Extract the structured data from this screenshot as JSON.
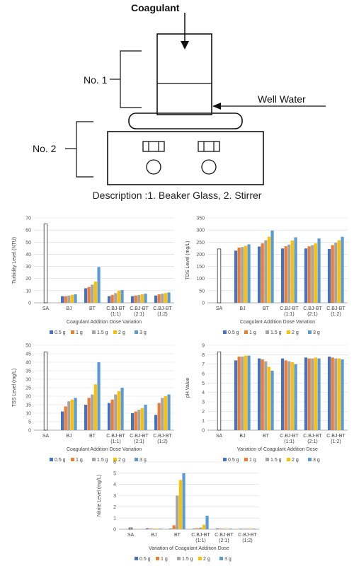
{
  "diagram": {
    "coagulant_label": "Coagulant",
    "well_water_label": "Well Water",
    "no1_label": "No. 1",
    "no2_label": "No. 2",
    "description": "Description :1. Beaker Glass, 2. Stirrer"
  },
  "colors": {
    "0.5 g": "#4472c4",
    "1 g": "#ed7d31",
    "1.5 g": "#a5a5a5",
    "2 g": "#ffc000",
    "3 g": "#5b9bd5",
    "SA": "#ffffff"
  },
  "chart_data": [
    {
      "id": "turbidity",
      "type": "bar",
      "ylabel": "Turbidity Level  (NTU)",
      "xlabel": "Coagulant Addition Dose Variation",
      "ylim": [
        0,
        70
      ],
      "yticks": [
        0,
        10,
        20,
        30,
        40,
        50,
        60,
        70
      ],
      "categories": [
        "SA",
        "BJ",
        "BT",
        "C.BJ-BT (1:1)",
        "C.BJ-BT (2:1)",
        "C.BJ-BT (1:2)"
      ],
      "sa_value": 65,
      "series": [
        {
          "name": "0.5 g",
          "values": [
            null,
            5.5,
            12,
            5.5,
            5.5,
            6
          ]
        },
        {
          "name": "1 g",
          "values": [
            null,
            5.5,
            13,
            6.5,
            6,
            7
          ]
        },
        {
          "name": "1.5 g",
          "values": [
            null,
            6,
            15,
            8,
            6.5,
            7.5
          ]
        },
        {
          "name": "2 g",
          "values": [
            null,
            6.5,
            17.5,
            10,
            7,
            8
          ]
        },
        {
          "name": "3 g",
          "values": [
            null,
            7,
            29.5,
            10.5,
            7.5,
            8.5
          ]
        }
      ],
      "legend": [
        "0.5 g",
        "1 g",
        "1.5 g",
        "2 g",
        "3 g"
      ]
    },
    {
      "id": "tds",
      "type": "bar",
      "ylabel": "TDS Level (mg/L)",
      "xlabel": "Coagulant Addition Dose Variation",
      "ylim": [
        0,
        350
      ],
      "yticks": [
        0,
        50,
        100,
        150,
        200,
        250,
        300,
        350
      ],
      "categories": [
        "SA",
        "BJ",
        "BT",
        "C.BJ-BT (1:1)",
        "C.BJ-BT (2:1)",
        "C.BJ-BT (1:2)"
      ],
      "sa_value": 222,
      "series": [
        {
          "name": "0.5 g",
          "values": [
            null,
            215,
            232,
            224,
            224,
            222
          ]
        },
        {
          "name": "1 g",
          "values": [
            null,
            228,
            245,
            233,
            233,
            238
          ]
        },
        {
          "name": "1.5 g",
          "values": [
            null,
            230,
            258,
            240,
            238,
            248
          ]
        },
        {
          "name": "2 g",
          "values": [
            null,
            235,
            272,
            257,
            245,
            258
          ]
        },
        {
          "name": "3 g",
          "values": [
            null,
            241,
            298,
            270,
            265,
            272
          ]
        }
      ],
      "legend": [
        "0.5 g",
        "1 g",
        "1.5 g",
        "2 g",
        "3 g"
      ]
    },
    {
      "id": "tss",
      "type": "bar",
      "ylabel": "TSS Level (mg/L)",
      "xlabel": "Coagulant Addition Dose Variation",
      "ylim": [
        0,
        50
      ],
      "yticks": [
        0,
        5,
        10,
        15,
        20,
        25,
        30,
        35,
        40,
        45,
        50
      ],
      "categories": [
        "SA",
        "BJ",
        "BT",
        "C.BJ-BT (1:1)",
        "C.BJ-BT (2:1)",
        "C.BJ-BT (1:2)"
      ],
      "sa_value": 46,
      "series": [
        {
          "name": "0.5 g",
          "values": [
            null,
            11,
            15,
            16,
            10,
            9
          ]
        },
        {
          "name": "1 g",
          "values": [
            null,
            14,
            19,
            18,
            11,
            16
          ]
        },
        {
          "name": "1.5 g",
          "values": [
            null,
            17,
            21,
            21,
            12,
            19
          ]
        },
        {
          "name": "2 g",
          "values": [
            null,
            18,
            27,
            23,
            13,
            20
          ]
        },
        {
          "name": "3 g",
          "values": [
            null,
            19,
            40,
            25,
            15,
            21
          ]
        }
      ],
      "legend": [
        "0.5 g",
        "1 g",
        "1.5 g",
        "2 g",
        "3 g"
      ]
    },
    {
      "id": "ph",
      "type": "bar",
      "ylabel": "pH Value",
      "xlabel": "Variation of Coagulant Addition Dose",
      "ylim": [
        0,
        9
      ],
      "yticks": [
        0,
        1,
        2,
        3,
        4,
        5,
        6,
        7,
        8,
        9
      ],
      "categories": [
        "SA",
        "BJ",
        "BT",
        "C.BJ-BT (1:1)",
        "C.BJ-BT (2:1)",
        "C.BJ-BT (1:2)"
      ],
      "sa_value": 8.3,
      "series": [
        {
          "name": "0.5 g",
          "values": [
            null,
            7.4,
            7.6,
            7.6,
            7.7,
            7.8
          ]
        },
        {
          "name": "1 g",
          "values": [
            null,
            7.8,
            7.5,
            7.4,
            7.6,
            7.7
          ]
        },
        {
          "name": "1.5 g",
          "values": [
            null,
            7.8,
            7.3,
            7.3,
            7.6,
            7.6
          ]
        },
        {
          "name": "2 g",
          "values": [
            null,
            7.9,
            6.7,
            7.2,
            7.7,
            7.6
          ]
        },
        {
          "name": "3 g",
          "values": [
            null,
            7.9,
            6.3,
            7.0,
            7.6,
            7.5
          ]
        }
      ],
      "legend": [
        "0.5 g",
        "1 g",
        "1.5 g",
        "2 g",
        "3 g"
      ]
    },
    {
      "id": "nitrite",
      "type": "bar",
      "ylabel": "Nitrite Level (mg/L)",
      "xlabel": "Variation of Coagulant Addition Dose",
      "ylim": [
        0,
        6
      ],
      "yticks": [
        0,
        1,
        2,
        3,
        4,
        5,
        6
      ],
      "categories": [
        "SA",
        "BJ",
        "BT",
        "C.BJ-BT (1:1)",
        "C.BJ-BT (2:1)",
        "C.BJ-BT (1:2)"
      ],
      "sa_value": 0.12,
      "series": [
        {
          "name": "0.5 g",
          "values": [
            null,
            0.08,
            0.05,
            0.05,
            0.06,
            0.04
          ]
        },
        {
          "name": "1 g",
          "values": [
            null,
            0.06,
            0.35,
            0.08,
            0.05,
            0.04
          ]
        },
        {
          "name": "1.5 g",
          "values": [
            null,
            0.05,
            3.0,
            0.15,
            0.05,
            0.05
          ]
        },
        {
          "name": "2 g",
          "values": [
            null,
            0.05,
            4.4,
            0.4,
            0.04,
            0.05
          ]
        },
        {
          "name": "3 g",
          "values": [
            null,
            0.05,
            5.0,
            1.2,
            0.05,
            0.05
          ]
        }
      ],
      "legend": [
        "0.5 g",
        "1 g",
        "1.5 g",
        "2 g",
        "3 g"
      ]
    }
  ]
}
